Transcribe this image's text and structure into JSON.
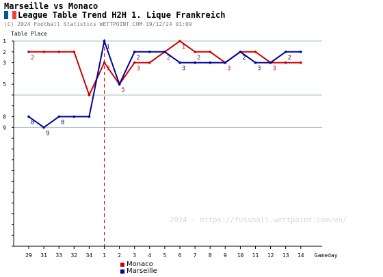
{
  "header": {
    "title": "Marseille vs Monaco",
    "subtitle": "League Table Trend H2H 1. Lique Frankreich",
    "copyright": "(C) 2024 Football Statistics WETTPOINT.COM 19/12/24 01:09",
    "flag_colors": [
      "#0055a4",
      "#ffffff",
      "#ef4135"
    ]
  },
  "watermark": "2024 - https://fussball.wettpoint.com/en/",
  "chart_data": {
    "type": "line",
    "ylabel": "Table Place",
    "xlabel": "Gameday",
    "categories": [
      "29",
      "31",
      "33",
      "32",
      "34",
      "1",
      "2",
      "3",
      "4",
      "5",
      "6",
      "7",
      "8",
      "9",
      "10",
      "11",
      "12",
      "13",
      "14"
    ],
    "ylim": [
      1,
      20
    ],
    "y_ticks": [
      1,
      2,
      3,
      5,
      8,
      9
    ],
    "grid_lines_y": [
      1,
      6,
      9
    ],
    "season_break_after_index": 4,
    "series": [
      {
        "name": "Monaco",
        "color": "#cc0000",
        "values": [
          2,
          2,
          2,
          2,
          6,
          3,
          5,
          3,
          3,
          2,
          1,
          2,
          2,
          3,
          2,
          2,
          3,
          3,
          3
        ],
        "labels": [
          "2",
          "",
          "",
          "",
          "",
          "3",
          "5",
          "3",
          "",
          "2",
          "1",
          "2",
          "",
          "3",
          "2",
          "",
          "3",
          "",
          ""
        ]
      },
      {
        "name": "Marseille",
        "color": "#000099",
        "values": [
          8,
          9,
          8,
          8,
          8,
          1,
          5,
          2,
          2,
          2,
          3,
          3,
          3,
          3,
          2,
          3,
          3,
          2,
          2
        ],
        "labels": [
          "8",
          "9",
          "8",
          "",
          "",
          "1",
          "",
          "2",
          "",
          "",
          "3",
          "",
          "",
          "",
          "2",
          "3",
          "",
          "2",
          ""
        ]
      }
    ]
  }
}
